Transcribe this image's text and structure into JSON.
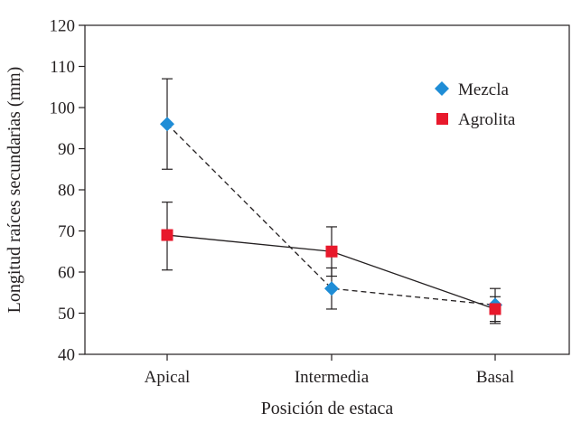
{
  "chart_data": {
    "type": "line",
    "title": "",
    "xlabel": "Posición de estaca",
    "ylabel": "Longitud raíces secundarias (mm)",
    "categories": [
      "Apical",
      "Intermedia",
      "Basal"
    ],
    "ylim": [
      40,
      120
    ],
    "yticks": [
      40,
      50,
      60,
      70,
      80,
      90,
      100,
      110,
      120
    ],
    "grid": false,
    "legend_position": "top-right",
    "series": [
      {
        "name": "Mezcla",
        "marker": "diamond",
        "line_style": "dashed",
        "color": "#1f8dd6",
        "values": [
          96,
          56,
          52
        ],
        "error_low": [
          85,
          51,
          48
        ],
        "error_high": [
          107,
          61,
          56
        ]
      },
      {
        "name": "Agrolita",
        "marker": "square",
        "line_style": "solid",
        "color": "#e8192c",
        "values": [
          69,
          65,
          51
        ],
        "error_low": [
          60.5,
          59,
          47.5
        ],
        "error_high": [
          77,
          71,
          54
        ]
      }
    ]
  }
}
